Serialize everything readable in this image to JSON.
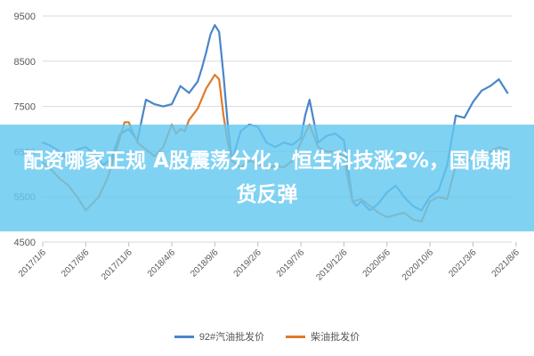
{
  "chart_data": {
    "type": "line",
    "y_ticks": [
      "9500",
      "8500",
      "7500",
      "6500",
      "5500",
      "4500"
    ],
    "ylim": [
      4500,
      9500
    ],
    "x_ticks": [
      "2017/1/6",
      "2017/6/6",
      "2017/11/6",
      "2018/4/6",
      "2018/9/6",
      "2019/2/6",
      "2019/7/6",
      "2019/12/6",
      "2020/5/6",
      "2020/10/6",
      "2021/3/6",
      "2021/8/6"
    ],
    "xlim": [
      0,
      10.9
    ],
    "grid": "horizontal",
    "legend_position": "bottom",
    "series": [
      {
        "name": "92#汽油批发价",
        "color": "#4a86c8",
        "x": [
          0,
          0.15,
          0.4,
          0.6,
          0.8,
          1.0,
          1.2,
          1.4,
          1.6,
          1.8,
          2.0,
          2.2,
          2.4,
          2.6,
          2.8,
          3.0,
          3.2,
          3.4,
          3.6,
          3.7,
          3.8,
          3.9,
          4.0,
          4.1,
          4.2,
          4.3,
          4.4,
          4.6,
          4.8,
          5.0,
          5.2,
          5.4,
          5.6,
          5.8,
          6.0,
          6.1,
          6.2,
          6.4,
          6.6,
          6.8,
          7.0,
          7.1,
          7.2,
          7.3,
          7.4,
          7.6,
          7.8,
          8.0,
          8.2,
          8.4,
          8.6,
          8.8,
          9.0,
          9.2,
          9.4,
          9.6,
          9.8,
          10.0,
          10.2,
          10.4,
          10.6,
          10.8
        ],
        "y": [
          6700,
          6650,
          6500,
          6300,
          6550,
          6600,
          6450,
          6200,
          6350,
          6900,
          7000,
          6750,
          7650,
          7550,
          7500,
          7550,
          7950,
          7800,
          8050,
          8350,
          8700,
          9100,
          9300,
          9150,
          8200,
          7100,
          6300,
          6950,
          7100,
          7050,
          6700,
          6600,
          6700,
          6650,
          6800,
          7300,
          7650,
          6700,
          6850,
          6900,
          6750,
          6100,
          5400,
          5300,
          5400,
          5200,
          5350,
          5600,
          5750,
          5500,
          5300,
          5200,
          5500,
          5650,
          6200,
          7300,
          7250,
          7600,
          7850,
          7950,
          8100,
          7800
        ]
      },
      {
        "name": "柴油批发价",
        "color": "#e07b2a",
        "x": [
          0,
          0.2,
          0.4,
          0.6,
          0.8,
          1.0,
          1.1,
          1.3,
          1.5,
          1.7,
          1.9,
          2.0,
          2.2,
          2.4,
          2.6,
          2.8,
          3.0,
          3.1,
          3.2,
          3.3,
          3.4,
          3.6,
          3.8,
          3.9,
          4.0,
          4.1,
          4.2,
          4.3,
          4.4,
          4.6,
          4.8,
          5.0,
          5.2,
          5.4,
          5.6,
          5.8,
          6.0,
          6.2,
          6.4,
          6.6,
          6.8,
          7.0,
          7.1,
          7.2,
          7.4,
          7.6,
          7.8,
          8.0,
          8.2,
          8.4,
          8.6,
          8.8,
          9.0,
          9.2,
          9.4,
          9.6,
          9.8,
          10.0,
          10.2,
          10.4,
          10.6,
          10.8
        ],
        "y": [
          6250,
          6100,
          5900,
          5750,
          5500,
          5200,
          5300,
          5500,
          5900,
          6500,
          7150,
          7150,
          6700,
          6550,
          6400,
          6600,
          7100,
          6900,
          7000,
          6950,
          7200,
          7450,
          7900,
          8050,
          8200,
          8100,
          7300,
          6700,
          6300,
          6150,
          6300,
          6250,
          6100,
          6200,
          6150,
          6300,
          6700,
          7100,
          6600,
          6500,
          6500,
          6400,
          5850,
          5400,
          5450,
          5300,
          5150,
          5050,
          5100,
          5150,
          5000,
          4950,
          5400,
          5500,
          5450,
          6200,
          6250,
          6350,
          6400,
          6500,
          6600,
          6550
        ]
      }
    ]
  },
  "banner": {
    "text": "配资哪家正规 A股震荡分化，恒生科技涨2%，国债期货反弹"
  },
  "legend": [
    {
      "label": "92#汽油批发价",
      "color": "#4a86c8"
    },
    {
      "label": "柴油批发价",
      "color": "#e07b2a"
    }
  ]
}
